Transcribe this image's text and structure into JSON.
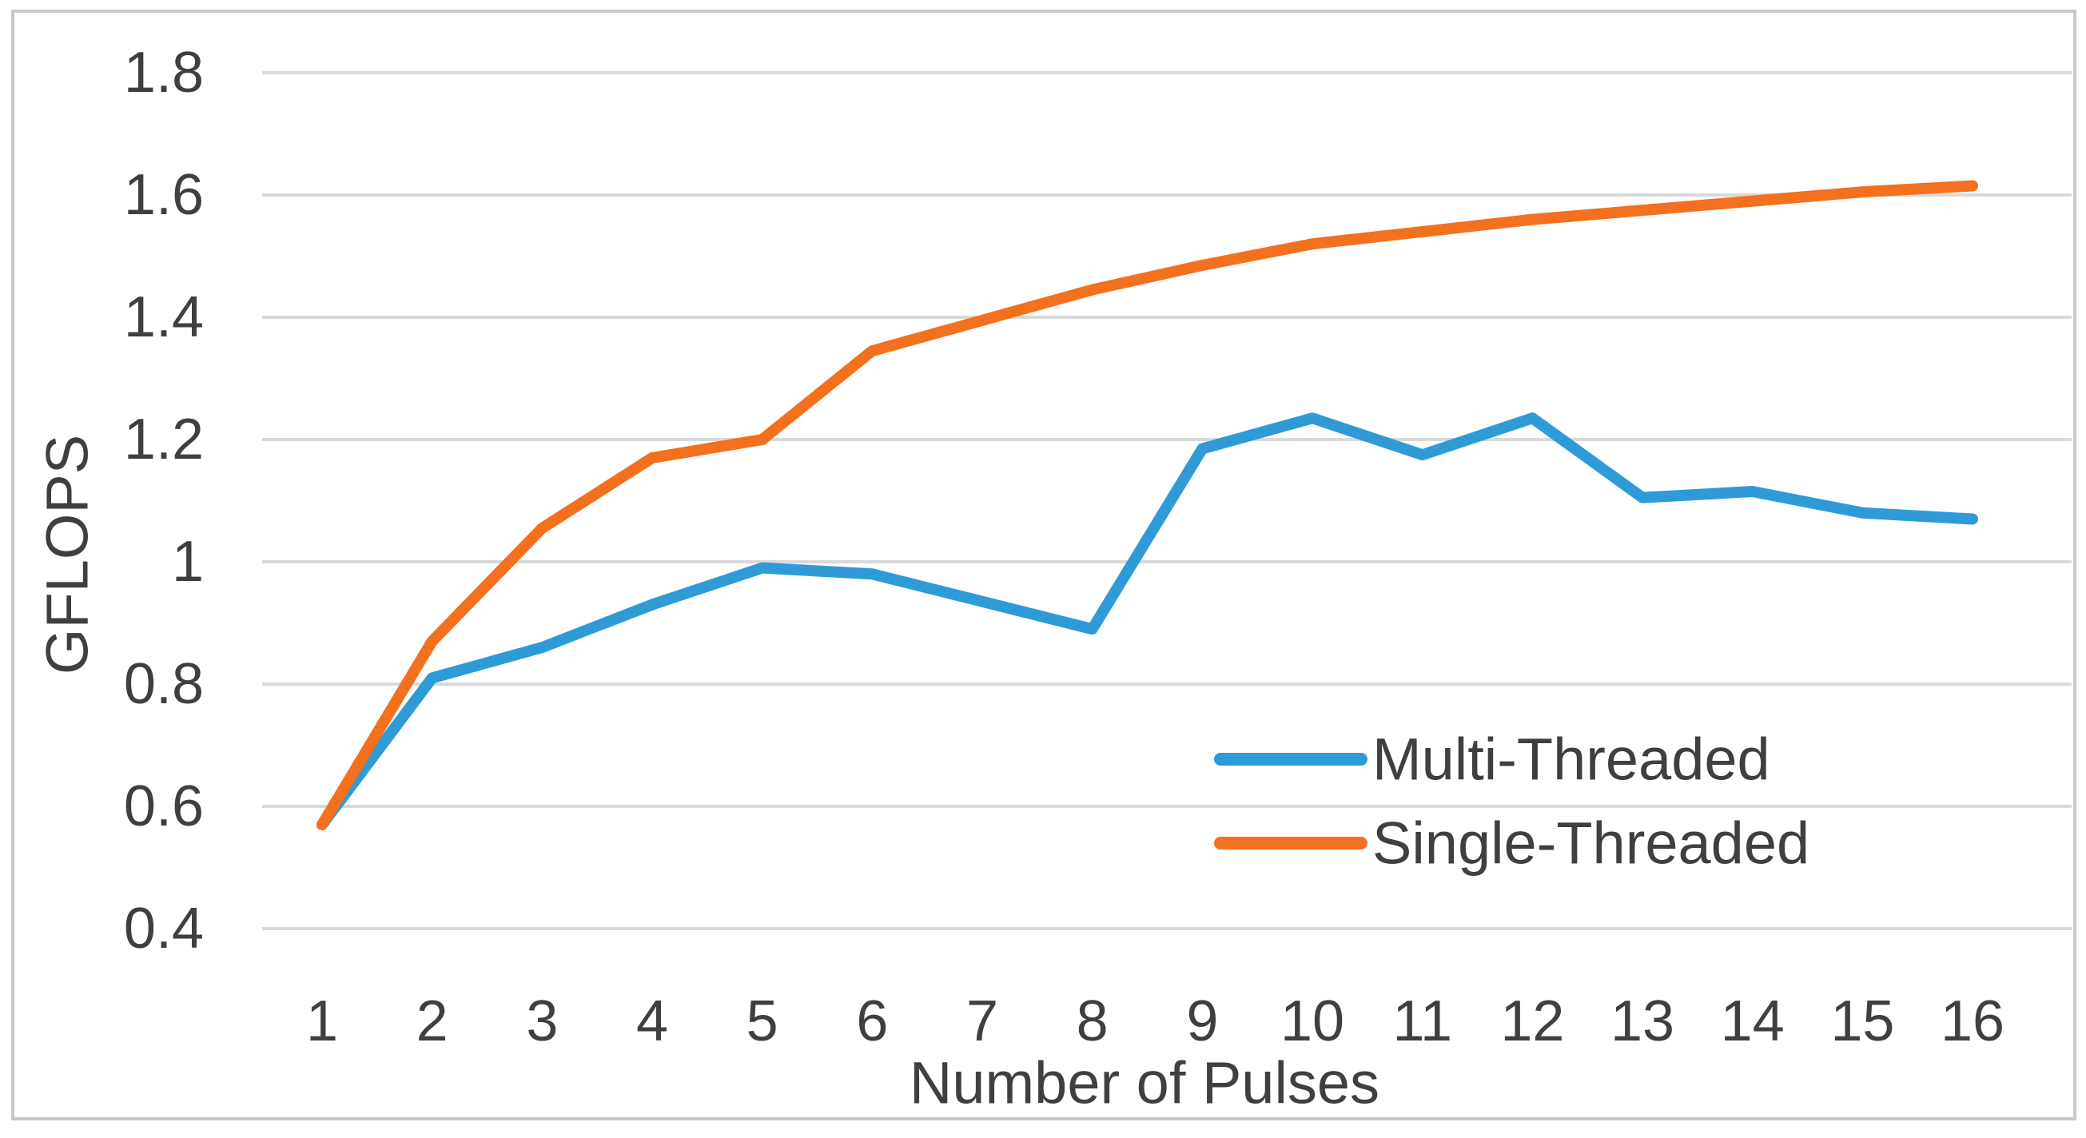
{
  "figure": {
    "background_color": "#ffffff",
    "border_color": "#c9c9c9",
    "text_color": "#3F3F3F",
    "gridline_color": "#d9d9d9"
  },
  "chart_data": {
    "type": "line",
    "title": "",
    "xlabel": "Number of Pulses",
    "ylabel": "GFLOPS",
    "x": [
      1,
      2,
      3,
      4,
      5,
      6,
      7,
      8,
      9,
      10,
      11,
      12,
      13,
      14,
      15,
      16
    ],
    "x_tick_labels": [
      "1",
      "2",
      "3",
      "4",
      "5",
      "6",
      "7",
      "8",
      "9",
      "10",
      "11",
      "12",
      "13",
      "14",
      "15",
      "16"
    ],
    "y_tick_values": [
      1.8,
      1.6,
      1.4,
      1.2,
      1.0,
      0.8,
      0.6,
      0.4
    ],
    "y_tick_labels": [
      "1.8",
      "1.6",
      "1.4",
      "1.2",
      "1",
      "0.8",
      "0.6",
      "0.4"
    ],
    "ylim": [
      0.4,
      1.8
    ],
    "grid": "horizontal",
    "legend_position": "inside-right",
    "series": [
      {
        "name": "Multi-Threaded",
        "color": "#2E9BD6",
        "values": [
          0.57,
          0.81,
          0.86,
          0.93,
          0.99,
          0.98,
          0.935,
          0.89,
          1.185,
          1.235,
          1.175,
          1.235,
          1.105,
          1.115,
          1.08,
          1.07
        ]
      },
      {
        "name": "Single-Threaded",
        "color": "#F3701E",
        "values": [
          0.57,
          0.87,
          1.055,
          1.17,
          1.2,
          1.345,
          1.395,
          1.445,
          1.485,
          1.52,
          1.54,
          1.56,
          1.575,
          1.59,
          1.605,
          1.615
        ]
      }
    ]
  }
}
